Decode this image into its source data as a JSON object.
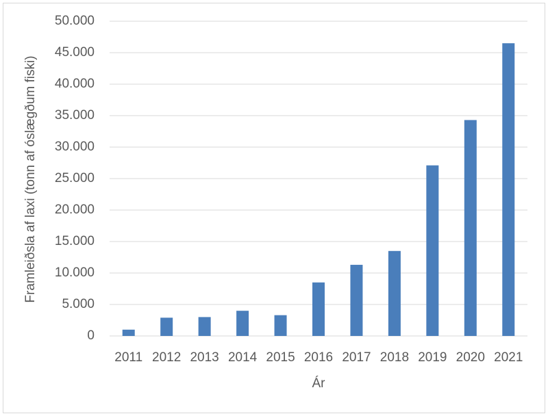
{
  "chart_data": {
    "type": "bar",
    "y_label": "Framleiðsla af laxi (tonn af óslægðum fiski)",
    "x_label": "Ár",
    "categories": [
      "2011",
      "2012",
      "2013",
      "2014",
      "2015",
      "2016",
      "2017",
      "2018",
      "2019",
      "2020",
      "2021"
    ],
    "values": [
      1000,
      2900,
      3000,
      4000,
      3300,
      8500,
      11300,
      13500,
      27100,
      34300,
      46500
    ],
    "color": "#4a7ebb",
    "ylim": [
      0,
      50000
    ],
    "yticks": [
      0,
      {
        "value": 5000,
        "label": "5.000"
      },
      {
        "value": 10000,
        "label": "10.000"
      },
      {
        "value": 15000,
        "label": "15.000"
      },
      {
        "value": 20000,
        "label": "20.000"
      },
      {
        "value": 25000,
        "label": "25.000"
      },
      {
        "value": 30000,
        "label": "30.000"
      },
      {
        "value": 35000,
        "label": "35.000"
      },
      {
        "value": 40000,
        "label": "40.000"
      },
      {
        "value": 45000,
        "label": "45.000"
      },
      {
        "value": 50000,
        "label": "50.000"
      }
    ],
    "grid": true
  }
}
